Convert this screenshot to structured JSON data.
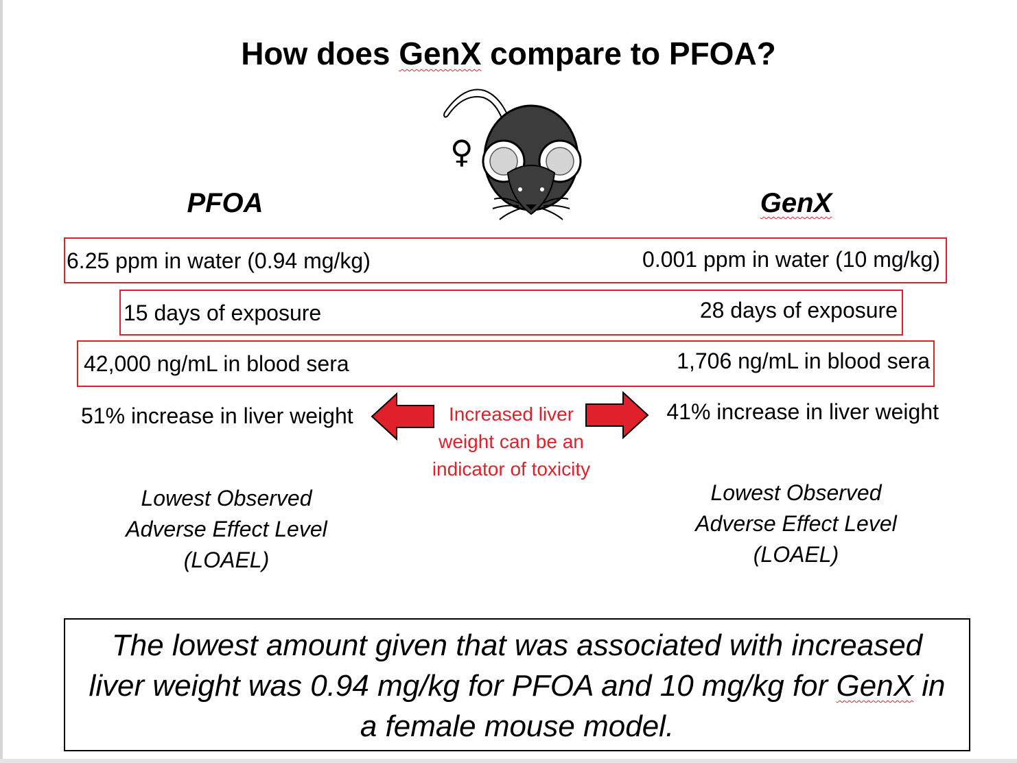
{
  "title": {
    "before": "How does ",
    "highlight": "GenX",
    "after": " compare to PFOA?"
  },
  "female_symbol": "♀",
  "columns": {
    "left": {
      "heading": "PFOA"
    },
    "right": {
      "heading": "GenX"
    }
  },
  "rows": [
    {
      "left": "6.25 ppm in water (0.94 mg/kg)",
      "right": "0.001 ppm in water (10 mg/kg)"
    },
    {
      "left": "15 days of exposure",
      "right": "28 days of exposure"
    },
    {
      "left": "42,000 ng/mL in blood sera",
      "right": "1,706 ng/mL in blood sera"
    }
  ],
  "liver": {
    "left": "51% increase in liver weight",
    "right": "41% increase in liver weight"
  },
  "note": {
    "line1": "Increased liver",
    "line2": "weight can be an",
    "line3": "indicator of toxicity"
  },
  "loael": {
    "line1": "Lowest Observed",
    "line2": "Adverse Effect Level",
    "line3": "(LOAEL)"
  },
  "summary": {
    "line1": "The lowest amount given that was associated with increased",
    "line2_before": "liver weight was 0.94 mg/kg for PFOA and 10 mg/kg for ",
    "line2_highlight": "GenX",
    "line2_after": " in",
    "line3": "a female mouse model."
  },
  "colors": {
    "accent_red": "#e0202a",
    "mouse_body": "#3c3c3c",
    "text": "#000000"
  }
}
